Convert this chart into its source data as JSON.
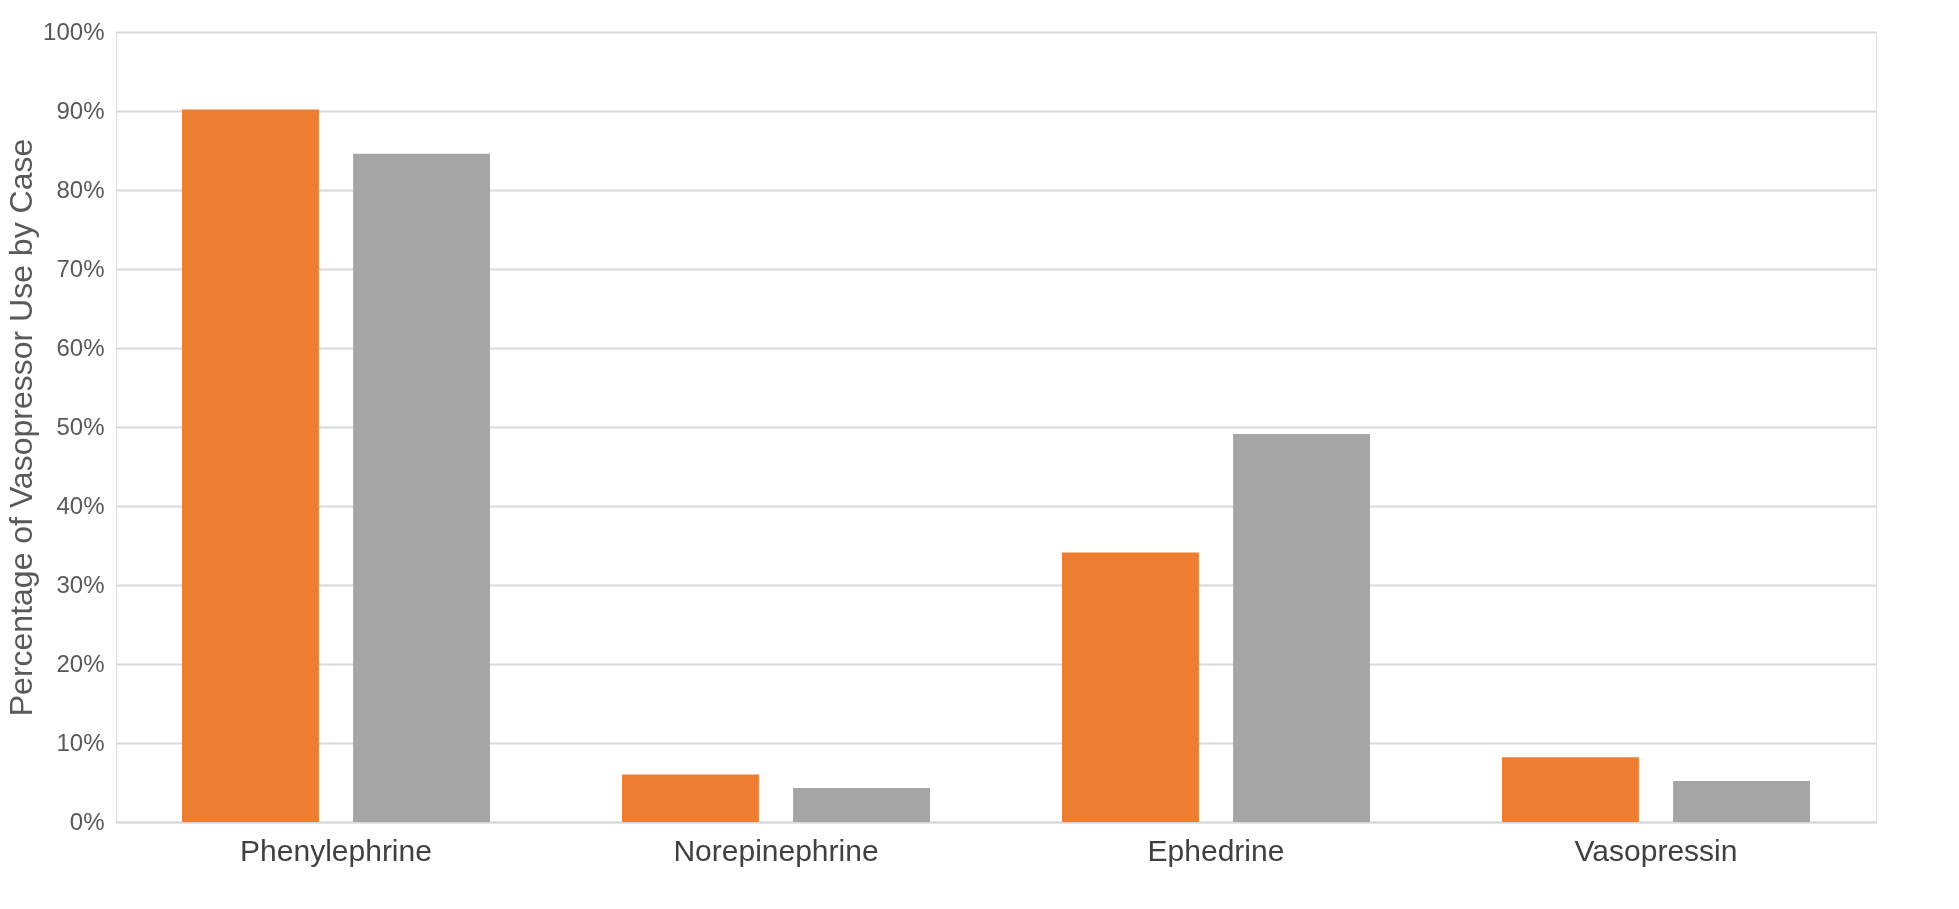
{
  "chart_data": {
    "type": "bar",
    "ylabel": "Percentage of Vasopressor Use by Case",
    "categories": [
      "Phenylephrine",
      "Norepinephrine",
      "Ephedrine",
      "Vasopressin"
    ],
    "series": [
      {
        "color": "#ed7d31",
        "values": [
          90.2,
          6.0,
          34.1,
          8.2
        ]
      },
      {
        "color": "#a5a5a5",
        "values": [
          84.6,
          4.3,
          49.1,
          5.2
        ]
      }
    ],
    "ylim": [
      0,
      100
    ],
    "yticks": [
      {
        "value": 0,
        "label": "0%"
      },
      {
        "value": 10,
        "label": "10%"
      },
      {
        "value": 20,
        "label": "20%"
      },
      {
        "value": 30,
        "label": "30%"
      },
      {
        "value": 40,
        "label": "40%"
      },
      {
        "value": 50,
        "label": "50%"
      },
      {
        "value": 60,
        "label": "60%"
      },
      {
        "value": 70,
        "label": "70%"
      },
      {
        "value": 80,
        "label": "80%"
      },
      {
        "value": 90,
        "label": "90%"
      },
      {
        "value": 100,
        "label": "100%"
      }
    ],
    "grid": "y"
  }
}
